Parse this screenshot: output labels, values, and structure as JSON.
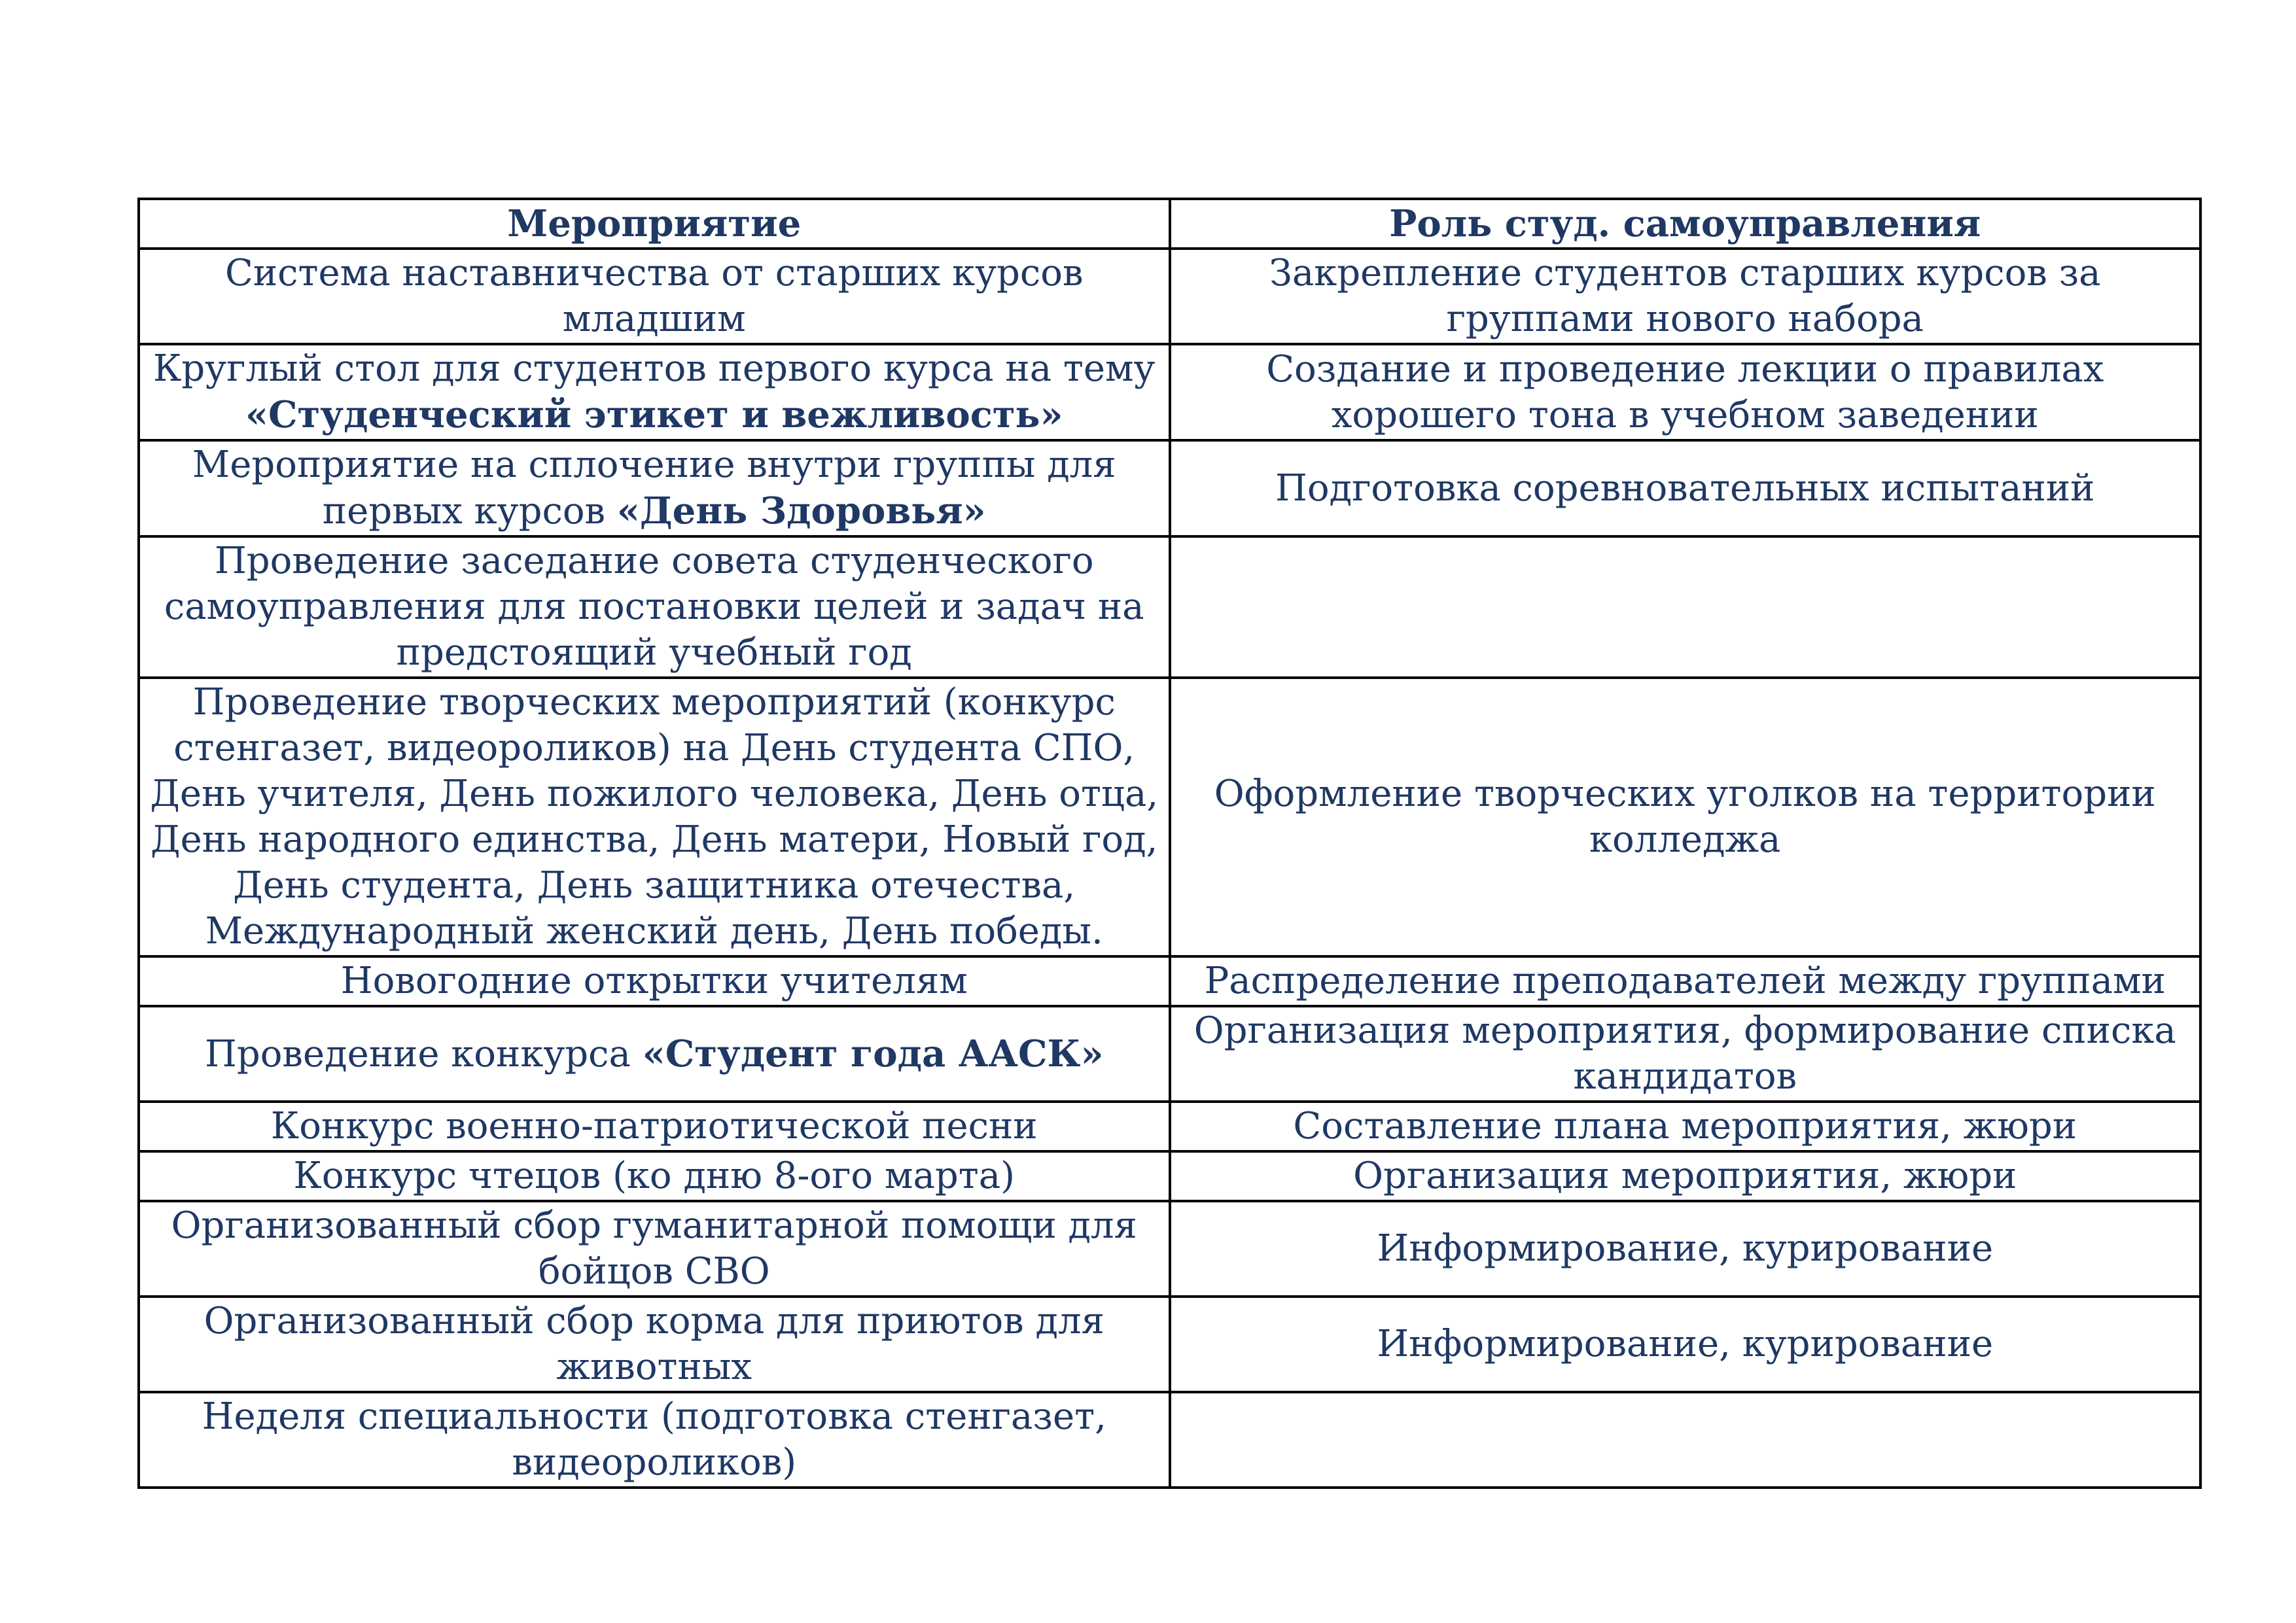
{
  "colors": {
    "text": "#1F3864",
    "border": "#000000",
    "background": "#FFFFFF"
  },
  "table": {
    "columns": [
      "Мероприятие",
      "Роль студ. самоуправления"
    ],
    "rows": [
      {
        "event": [
          {
            "text": "Система наставничества от старших курсов младшим",
            "bold": false
          }
        ],
        "role": [
          {
            "text": "Закрепление студентов старших курсов за группами нового набора",
            "bold": false
          }
        ]
      },
      {
        "event": [
          {
            "text": "Круглый стол для студентов первого курса на тему ",
            "bold": false
          },
          {
            "text": "«Студенческий этикет и вежливость»",
            "bold": true
          }
        ],
        "role": [
          {
            "text": "Создание и проведение лекции о правилах хорошего тона в учебном заведении",
            "bold": false
          }
        ]
      },
      {
        "event": [
          {
            "text": "Мероприятие на сплочение внутри группы для первых курсов ",
            "bold": false
          },
          {
            "text": "«День Здоровья»",
            "bold": true
          }
        ],
        "role": [
          {
            "text": "Подготовка соревновательных испытаний",
            "bold": false
          }
        ]
      },
      {
        "event": [
          {
            "text": "Проведение заседание совета студенческого самоуправления для постановки целей и задач на предстоящий учебный год",
            "bold": false
          }
        ],
        "role": []
      },
      {
        "event": [
          {
            "text": "Проведение творческих мероприятий (конкурс стенгазет, видеороликов) на День студента СПО, День учителя, День пожилого человека, День отца, День народного единства, День матери, Новый год, День студента, День защитника отечества, Международный женский день, День победы.",
            "bold": false
          }
        ],
        "role": [
          {
            "text": "Оформление творческих уголков на территории колледжа",
            "bold": false
          }
        ]
      },
      {
        "event": [
          {
            "text": "Новогодние открытки учителям",
            "bold": false
          }
        ],
        "role": [
          {
            "text": "Распределение преподавателей между группами",
            "bold": false
          }
        ]
      },
      {
        "event": [
          {
            "text": "Проведение конкурса ",
            "bold": false
          },
          {
            "text": "«Студент года ААСК»",
            "bold": true
          }
        ],
        "role": [
          {
            "text": "Организация мероприятия, формирование списка кандидатов",
            "bold": false
          }
        ]
      },
      {
        "event": [
          {
            "text": "Конкурс военно-патриотической песни",
            "bold": false
          }
        ],
        "role": [
          {
            "text": "Составление плана мероприятия, жюри",
            "bold": false
          }
        ]
      },
      {
        "event": [
          {
            "text": "Конкурс чтецов (ко дню 8-ого марта)",
            "bold": false
          }
        ],
        "role": [
          {
            "text": "Организация мероприятия, жюри",
            "bold": false
          }
        ]
      },
      {
        "event": [
          {
            "text": "Организованный сбор гуманитарной помощи для бойцов СВО",
            "bold": false
          }
        ],
        "role": [
          {
            "text": "Информирование, курирование",
            "bold": false
          }
        ]
      },
      {
        "event": [
          {
            "text": "Организованный сбор корма для приютов для животных",
            "bold": false
          }
        ],
        "role": [
          {
            "text": "Информирование, курирование",
            "bold": false
          }
        ]
      },
      {
        "event": [
          {
            "text": "Неделя специальности (подготовка стенгазет, видеороликов)",
            "bold": false
          }
        ],
        "role": []
      }
    ]
  }
}
